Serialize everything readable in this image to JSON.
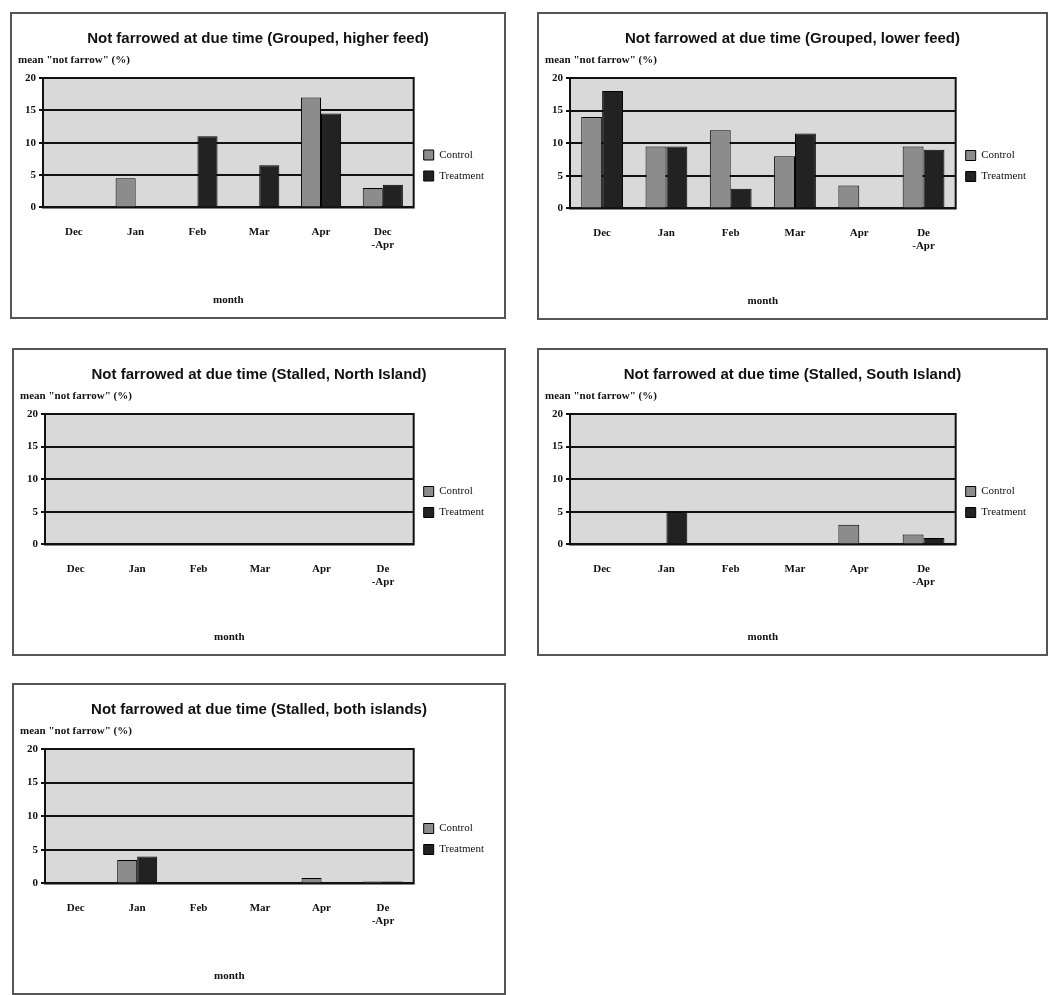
{
  "chart_data": [
    {
      "type": "bar",
      "title": "Not farrowed at due time (Grouped, higher feed)",
      "ylabel": "mean \"not farrow\" (%)",
      "xlabel": "month",
      "categories": [
        "Dec",
        "Jan",
        "Feb",
        "Mar",
        "Apr",
        "Dec\n-Apr"
      ],
      "series": [
        {
          "name": "Control",
          "color": "#8c8c8c",
          "values": [
            0,
            4.5,
            0,
            0,
            17,
            3
          ]
        },
        {
          "name": "Treatment",
          "color": "#222222",
          "values": [
            0,
            0,
            11,
            6.5,
            14.5,
            3.5
          ]
        }
      ],
      "ylim": [
        0,
        20
      ],
      "yticks": [
        0,
        5,
        10,
        15,
        20
      ],
      "grid": "y",
      "legend": "right"
    },
    {
      "type": "bar",
      "title": "Not farrowed at due time (Grouped, lower feed)",
      "ylabel": "mean \"not farrow\" (%)",
      "xlabel": "month",
      "categories": [
        "Dec",
        "Jan",
        "Feb",
        "Mar",
        "Apr",
        "De\n-Apr"
      ],
      "series": [
        {
          "name": "Control",
          "color": "#8c8c8c",
          "values": [
            14,
            9.5,
            12,
            8,
            3.5,
            9.5
          ]
        },
        {
          "name": "Treatment",
          "color": "#222222",
          "values": [
            18,
            9.5,
            3,
            11.5,
            0,
            9
          ]
        }
      ],
      "ylim": [
        0,
        20
      ],
      "yticks": [
        0,
        5,
        10,
        15,
        20
      ],
      "grid": "y",
      "legend": "right"
    },
    {
      "type": "bar",
      "title": "Not farrowed at due time (Stalled, North Island)",
      "ylabel": "mean \"not farrow\" (%)",
      "xlabel": "month",
      "categories": [
        "Dec",
        "Jan",
        "Feb",
        "Mar",
        "Apr",
        "De\n-Apr"
      ],
      "series": [
        {
          "name": "Control",
          "color": "#8c8c8c",
          "values": [
            0,
            0,
            0,
            0,
            0,
            0
          ]
        },
        {
          "name": "Treatment",
          "color": "#222222",
          "values": [
            0,
            0,
            0,
            0,
            0,
            0
          ]
        }
      ],
      "ylim": [
        0,
        20
      ],
      "yticks": [
        0,
        5,
        10,
        15,
        20
      ],
      "grid": "y",
      "legend": "right"
    },
    {
      "type": "bar",
      "title": "Not farrowed at due time (Stalled, South Island)",
      "ylabel": "mean \"not farrow\" (%)",
      "xlabel": "month",
      "categories": [
        "Dec",
        "Jan",
        "Feb",
        "Mar",
        "Apr",
        "De\n-Apr"
      ],
      "series": [
        {
          "name": "Control",
          "color": "#8c8c8c",
          "values": [
            0,
            0,
            0,
            0,
            3,
            1.5
          ]
        },
        {
          "name": "Treatment",
          "color": "#222222",
          "values": [
            0,
            5,
            0,
            0,
            0,
            1
          ]
        }
      ],
      "ylim": [
        0,
        20
      ],
      "yticks": [
        0,
        5,
        10,
        15,
        20
      ],
      "grid": "y",
      "legend": "right"
    },
    {
      "type": "bar",
      "title": "Not farrowed at due time (Stalled, both islands)",
      "ylabel": "mean \"not farrow\" (%)",
      "xlabel": "month",
      "categories": [
        "Dec",
        "Jan",
        "Feb",
        "Mar",
        "Apr",
        "De\n-Apr"
      ],
      "series": [
        {
          "name": "Control",
          "color": "#8c8c8c",
          "values": [
            0,
            3.5,
            0,
            0,
            0.8,
            0.3
          ]
        },
        {
          "name": "Treatment",
          "color": "#222222",
          "values": [
            0,
            4,
            0,
            0,
            0,
            0.3
          ]
        }
      ],
      "ylim": [
        0,
        20
      ],
      "yticks": [
        0,
        5,
        10,
        15,
        20
      ],
      "grid": "y",
      "legend": "right"
    }
  ]
}
